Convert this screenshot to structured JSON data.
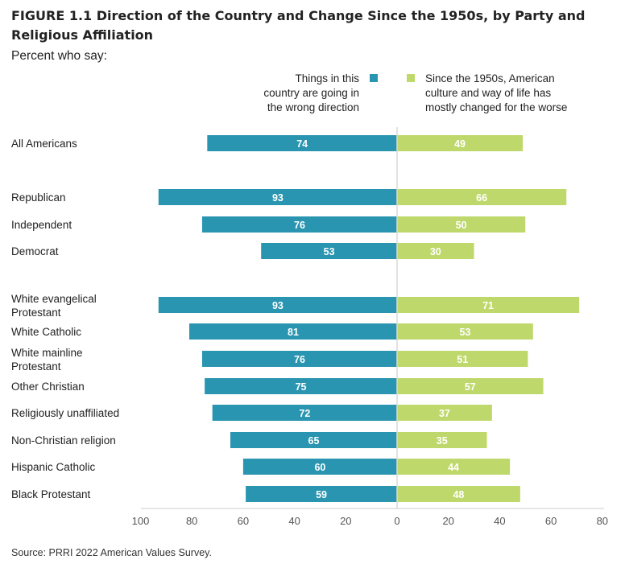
{
  "title": "FIGURE 1.1  Direction of the Country and Change Since the 1950s, by Party and Religious Affiliation",
  "subtitle": "Percent who say:",
  "source": "Source: PRRI 2022 American Values Survey.",
  "colors": {
    "left": "#2a95b0",
    "right": "#bfd86b",
    "axis": "#cccccc",
    "center": "#d9d9d9"
  },
  "chart_data": {
    "type": "bar",
    "orientation": "diverging-horizontal",
    "title": "FIGURE 1.1  Direction of the Country and Change Since the 1950s, by Party and Religious Affiliation",
    "subtitle": "Percent who say:",
    "categories": [
      [
        "All Americans"
      ],
      [
        "Republican"
      ],
      [
        "Independent"
      ],
      [
        "Democrat"
      ],
      [
        "White evangelical",
        "Protestant"
      ],
      [
        "White Catholic"
      ],
      [
        "White mainline",
        "Protestant"
      ],
      [
        "Other Christian"
      ],
      [
        "Religiously unaffiliated"
      ],
      [
        "Non-Christian religion"
      ],
      [
        "Hispanic Catholic"
      ],
      [
        "Black Protestant"
      ]
    ],
    "series": [
      {
        "name": "Things in this country are going in the wrong direction",
        "name_lines": [
          "Things in this",
          "country are going in",
          "the wrong direction"
        ],
        "values": [
          74,
          93,
          76,
          53,
          93,
          81,
          76,
          75,
          72,
          65,
          60,
          59
        ]
      },
      {
        "name": "Since the 1950s, American culture and way of life has mostly changed for the worse",
        "name_lines": [
          "Since the 1950s, American",
          "culture and way of life has",
          "mostly changed for the worse"
        ],
        "values": [
          49,
          66,
          50,
          30,
          71,
          53,
          51,
          57,
          37,
          35,
          44,
          48
        ]
      }
    ],
    "xticks": [
      "100",
      "80",
      "60",
      "40",
      "20",
      "0",
      "20",
      "40",
      "60",
      "80"
    ],
    "xlim": [
      -100,
      80
    ],
    "grid": false,
    "legend": "top"
  }
}
